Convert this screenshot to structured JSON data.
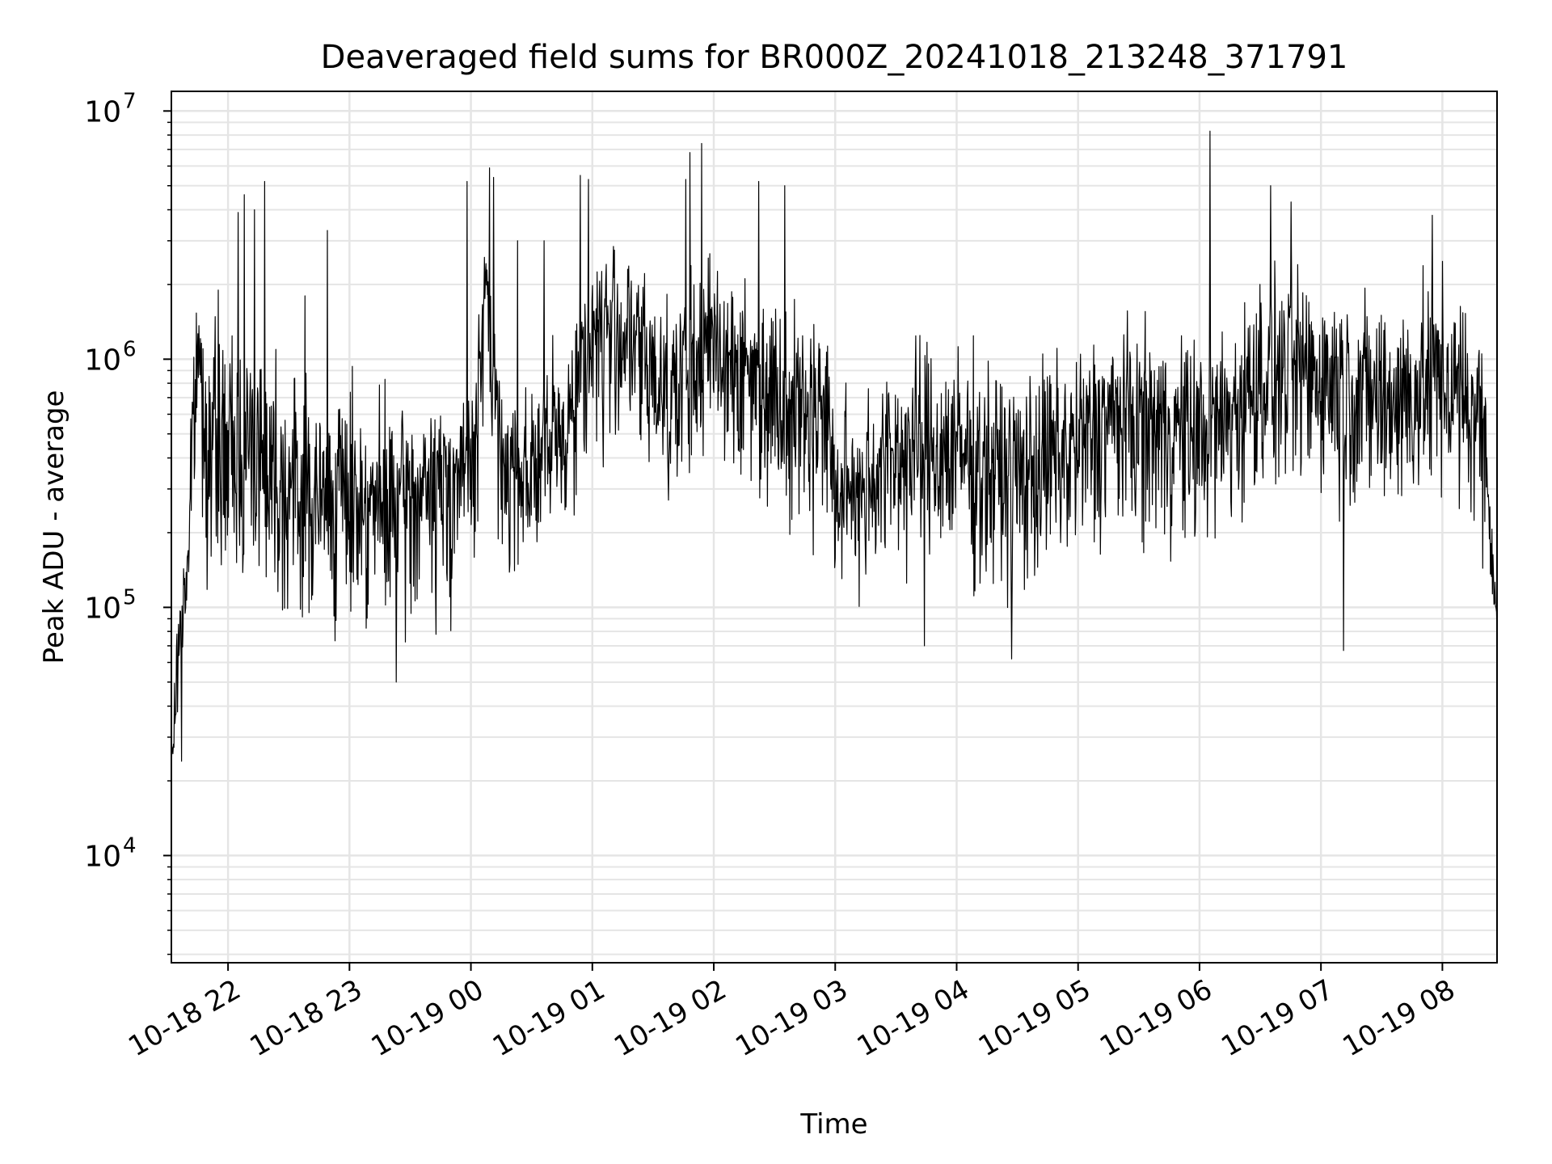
{
  "chart_data": {
    "type": "line",
    "title": "Deaveraged field sums for BR000Z_20241018_213248_371791",
    "xlabel": "Time",
    "ylabel": "Peak ADU - average",
    "yscale": "log",
    "ylim": [
      3700,
      12000000
    ],
    "xlim": [
      "2024-10-18 21:32",
      "2024-10-19 08:27"
    ],
    "grid": true,
    "line_color": "#000000",
    "grid_color": "#e5e5e5",
    "x_tick_labels": [
      {
        "t": "2024-10-18 22:00",
        "label": "10-18 22"
      },
      {
        "t": "2024-10-18 23:00",
        "label": "10-18 23"
      },
      {
        "t": "2024-10-19 00:00",
        "label": "10-19 00"
      },
      {
        "t": "2024-10-19 01:00",
        "label": "10-19 01"
      },
      {
        "t": "2024-10-19 02:00",
        "label": "10-19 02"
      },
      {
        "t": "2024-10-19 03:00",
        "label": "10-19 03"
      },
      {
        "t": "2024-10-19 04:00",
        "label": "10-19 04"
      },
      {
        "t": "2024-10-19 05:00",
        "label": "10-19 05"
      },
      {
        "t": "2024-10-19 06:00",
        "label": "10-19 06"
      },
      {
        "t": "2024-10-19 07:00",
        "label": "10-19 07"
      },
      {
        "t": "2024-10-19 08:00",
        "label": "10-19 08"
      }
    ],
    "y_tick_labels": [
      {
        "value": 10000,
        "base": "10",
        "exp": "4"
      },
      {
        "value": 100000,
        "base": "10",
        "exp": "5"
      },
      {
        "value": 1000000,
        "base": "10",
        "exp": "6"
      },
      {
        "value": 10000000,
        "base": "10",
        "exp": "7"
      }
    ],
    "series_envelope": {
      "x": [
        "2024-10-18 21:32",
        "2024-10-18 21:36",
        "2024-10-18 21:40",
        "2024-10-18 21:42",
        "2024-10-18 21:45",
        "2024-10-18 21:50",
        "2024-10-18 22:00",
        "2024-10-18 22:15",
        "2024-10-18 22:30",
        "2024-10-18 22:45",
        "2024-10-18 23:00",
        "2024-10-18 23:15",
        "2024-10-18 23:30",
        "2024-10-18 23:45",
        "2024-10-19 00:00",
        "2024-10-19 00:08",
        "2024-10-19 00:15",
        "2024-10-19 00:30",
        "2024-10-19 00:45",
        "2024-10-19 01:00",
        "2024-10-19 01:15",
        "2024-10-19 01:30",
        "2024-10-19 01:45",
        "2024-10-19 02:00",
        "2024-10-19 02:15",
        "2024-10-19 02:30",
        "2024-10-19 02:45",
        "2024-10-19 02:55",
        "2024-10-19 03:00",
        "2024-10-19 03:15",
        "2024-10-19 03:30",
        "2024-10-19 03:45",
        "2024-10-19 04:00",
        "2024-10-19 04:15",
        "2024-10-19 04:30",
        "2024-10-19 04:45",
        "2024-10-19 05:00",
        "2024-10-19 05:15",
        "2024-10-19 05:30",
        "2024-10-19 05:45",
        "2024-10-19 06:00",
        "2024-10-19 06:15",
        "2024-10-19 06:30",
        "2024-10-19 06:45",
        "2024-10-19 07:00",
        "2024-10-19 07:15",
        "2024-10-19 07:30",
        "2024-10-19 07:45",
        "2024-10-19 08:00",
        "2024-10-19 08:10",
        "2024-10-19 08:20",
        "2024-10-19 08:27"
      ],
      "median": [
        20000,
        80000,
        150000,
        400000,
        1200000,
        450000,
        380000,
        420000,
        300000,
        250000,
        300000,
        250000,
        280000,
        330000,
        400000,
        2000000,
        400000,
        380000,
        500000,
        1300000,
        1400000,
        900000,
        800000,
        1300000,
        900000,
        800000,
        650000,
        700000,
        280000,
        330000,
        420000,
        450000,
        430000,
        380000,
        350000,
        400000,
        450000,
        600000,
        580000,
        550000,
        520000,
        600000,
        900000,
        900000,
        900000,
        800000,
        700000,
        750000,
        900000,
        700000,
        600000,
        90000
      ],
      "low": [
        20000,
        40000,
        70000,
        150000,
        300000,
        130000,
        110000,
        120000,
        80000,
        70000,
        80000,
        65000,
        70000,
        80000,
        80000,
        500000,
        110000,
        120000,
        160000,
        320000,
        350000,
        230000,
        200000,
        350000,
        230000,
        220000,
        170000,
        180000,
        90000,
        100000,
        120000,
        120000,
        110000,
        90000,
        90000,
        100000,
        110000,
        150000,
        150000,
        140000,
        130000,
        150000,
        240000,
        240000,
        240000,
        200000,
        180000,
        190000,
        230000,
        180000,
        160000,
        75000
      ],
      "high": [
        30000,
        150000,
        250000,
        800000,
        2200000,
        1400000,
        1600000,
        1800000,
        1200000,
        900000,
        900000,
        750000,
        700000,
        700000,
        800000,
        3500000,
        800000,
        900000,
        1300000,
        3200000,
        3300000,
        2300000,
        2200000,
        3100000,
        2300000,
        2000000,
        1700000,
        1800000,
        700000,
        900000,
        1200000,
        1400000,
        1300000,
        1100000,
        1000000,
        1200000,
        1300000,
        1600000,
        1500000,
        1400000,
        1400000,
        1600000,
        2500000,
        2500000,
        2500000,
        2200000,
        2000000,
        2100000,
        2500000,
        2000000,
        1500000,
        120000
      ]
    },
    "spikes": [
      {
        "x": "2024-10-18 21:37",
        "y": 24000
      },
      {
        "x": "2024-10-18 21:55",
        "y": 1900000
      },
      {
        "x": "2024-10-18 22:05",
        "y": 3900000
      },
      {
        "x": "2024-10-18 22:08",
        "y": 4600000
      },
      {
        "x": "2024-10-18 22:13",
        "y": 4000000
      },
      {
        "x": "2024-10-18 22:18",
        "y": 5200000
      },
      {
        "x": "2024-10-18 22:38",
        "y": 1800000
      },
      {
        "x": "2024-10-18 22:49",
        "y": 3300000
      },
      {
        "x": "2024-10-18 23:23",
        "y": 50000
      },
      {
        "x": "2024-10-18 23:58",
        "y": 5200000
      },
      {
        "x": "2024-10-19 00:09",
        "y": 5900000
      },
      {
        "x": "2024-10-19 00:11",
        "y": 5400000
      },
      {
        "x": "2024-10-19 00:23",
        "y": 3000000
      },
      {
        "x": "2024-10-19 00:36",
        "y": 3000000
      },
      {
        "x": "2024-10-19 00:54",
        "y": 5500000
      },
      {
        "x": "2024-10-19 00:58",
        "y": 5300000
      },
      {
        "x": "2024-10-19 01:46",
        "y": 5300000
      },
      {
        "x": "2024-10-19 01:48",
        "y": 6800000
      },
      {
        "x": "2024-10-19 01:54",
        "y": 7400000
      },
      {
        "x": "2024-10-19 02:22",
        "y": 5200000
      },
      {
        "x": "2024-10-19 02:35",
        "y": 5000000
      },
      {
        "x": "2024-10-19 03:44",
        "y": 70000
      },
      {
        "x": "2024-10-19 04:27",
        "y": 62000
      },
      {
        "x": "2024-10-19 06:05",
        "y": 8300000
      },
      {
        "x": "2024-10-19 06:35",
        "y": 5000000
      },
      {
        "x": "2024-10-19 06:45",
        "y": 4300000
      },
      {
        "x": "2024-10-19 07:11",
        "y": 67000
      },
      {
        "x": "2024-10-19 07:55",
        "y": 3800000
      },
      {
        "x": "2024-10-19 08:27",
        "y": 75000
      }
    ]
  }
}
